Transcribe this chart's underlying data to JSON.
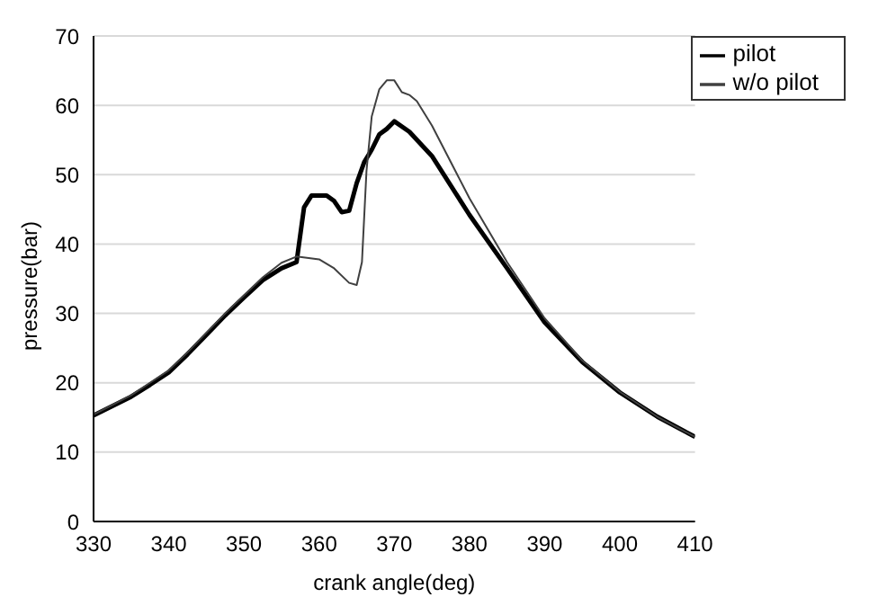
{
  "chart_data": {
    "type": "line",
    "xlabel": "crank angle(deg)",
    "ylabel": "pressure(bar)",
    "xlim": [
      330,
      410
    ],
    "xticks": [
      330,
      340,
      350,
      360,
      370,
      380,
      390,
      400,
      410
    ],
    "ylim": [
      0,
      70
    ],
    "yticks": [
      0,
      10,
      20,
      30,
      40,
      50,
      60,
      70
    ],
    "grid": "y",
    "legend": "top right",
    "marker": "none",
    "line_style": "solid",
    "series": [
      {
        "name": "pilot",
        "color": "#000000",
        "x": [
          330,
          335,
          337.5,
          340,
          342.5,
          345,
          347.5,
          350,
          352.5,
          355,
          357,
          358,
          359,
          361,
          362,
          363,
          364,
          365,
          366,
          367,
          368,
          369,
          370,
          372,
          375,
          380,
          385,
          390,
          395,
          400,
          405,
          410
        ],
        "values": [
          15.3,
          18.0,
          19.7,
          21.5,
          24.1,
          26.9,
          29.7,
          32.3,
          34.8,
          36.5,
          37.4,
          45.3,
          47.0,
          47.0,
          46.2,
          44.6,
          44.8,
          48.8,
          51.8,
          53.6,
          55.8,
          56.6,
          57.7,
          56.2,
          52.7,
          44.2,
          36.5,
          28.7,
          23.0,
          18.6,
          15.1,
          12.2
        ]
      },
      {
        "name": "w/o pilot",
        "color": "#404040",
        "x": [
          330,
          335,
          337.5,
          340,
          342.5,
          345,
          347.5,
          350,
          352.5,
          355,
          357,
          360,
          362,
          364,
          365,
          365.7,
          366.3,
          367,
          368,
          369,
          370,
          371,
          372,
          373,
          375,
          380,
          385,
          390,
          395,
          400,
          405,
          410
        ],
        "values": [
          15.4,
          18.2,
          20.0,
          21.8,
          24.4,
          27.2,
          30.0,
          32.6,
          35.2,
          37.3,
          38.2,
          37.8,
          36.5,
          34.4,
          34.1,
          37.4,
          50.5,
          58.4,
          62.3,
          63.6,
          63.6,
          61.9,
          61.5,
          60.6,
          57.1,
          46.6,
          37.4,
          29.3,
          23.2,
          18.7,
          15.1,
          12.2
        ]
      }
    ]
  }
}
